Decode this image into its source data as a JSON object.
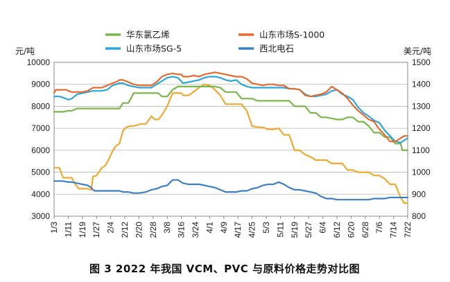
{
  "chart_data": {
    "type": "line",
    "caption": "图 3  2022 年我国 VCM、PVC 与原料价格走势对比图",
    "left_axis": {
      "unit": "元/吨",
      "ylim": [
        3000,
        10000
      ],
      "ticks": [
        "3000",
        "4000",
        "5000",
        "6000",
        "7000",
        "8000",
        "9000",
        "10000"
      ]
    },
    "right_axis": {
      "unit": "美元/吨",
      "ylim": [
        800,
        1500
      ],
      "ticks": [
        "800",
        "900",
        "1000",
        "1100",
        "1200",
        "1300",
        "1400",
        "1500"
      ]
    },
    "x_ticks": [
      "1/3",
      "1/11",
      "1/19",
      "1/27",
      "2/4",
      "2/12",
      "2/20",
      "2/28",
      "3/8",
      "3/16",
      "3/24",
      "4/1",
      "4/9",
      "4/17",
      "4/25",
      "5/3",
      "5/11",
      "5/19",
      "5/27",
      "6/4",
      "6/12",
      "6/20",
      "6/28",
      "7/6",
      "7/14",
      "7/22"
    ],
    "x_range_days": [
      3,
      203
    ],
    "grid": "horizontal",
    "legend_position": "top",
    "series": [
      {
        "name": "华东氯乙烯",
        "color": "#7ab648",
        "axis": "right",
        "x": [
          3,
          8,
          11,
          13,
          16,
          19,
          22,
          25,
          27,
          30,
          33,
          36,
          38,
          40,
          42,
          45,
          48,
          52,
          55,
          58,
          60,
          62,
          64,
          67,
          70,
          73,
          76,
          79,
          82,
          85,
          88,
          91,
          94,
          97,
          100,
          103,
          106,
          109,
          112,
          115,
          118,
          121,
          124,
          127,
          130,
          133,
          136,
          139,
          142,
          145,
          148,
          151,
          154,
          157,
          160,
          163,
          166,
          169,
          172,
          175,
          178,
          181,
          184,
          187,
          190,
          193,
          196,
          199,
          200,
          203
        ],
        "y": [
          1275,
          1275,
          1280,
          1280,
          1290,
          1290,
          1290,
          1290,
          1290,
          1290,
          1290,
          1290,
          1290,
          1290,
          1315,
          1315,
          1360,
          1360,
          1360,
          1360,
          1360,
          1360,
          1345,
          1345,
          1375,
          1390,
          1390,
          1390,
          1390,
          1390,
          1390,
          1390,
          1390,
          1385,
          1365,
          1365,
          1365,
          1335,
          1335,
          1335,
          1325,
          1325,
          1325,
          1325,
          1325,
          1325,
          1325,
          1300,
          1300,
          1300,
          1270,
          1270,
          1250,
          1250,
          1245,
          1240,
          1240,
          1250,
          1250,
          1230,
          1230,
          1210,
          1180,
          1180,
          1160,
          1160,
          1130,
          1130,
          1100,
          1100
        ]
      },
      {
        "name": "山东市场S-1000",
        "color": "#e56a2c",
        "axis": "left",
        "x": [
          3,
          4,
          6,
          8,
          10,
          11,
          13,
          16,
          19,
          22,
          25,
          27,
          30,
          33,
          36,
          38,
          40,
          42,
          45,
          48,
          51,
          55,
          58,
          61,
          64,
          67,
          70,
          73,
          75,
          76,
          79,
          82,
          85,
          88,
          91,
          94,
          97,
          100,
          103,
          106,
          109,
          112,
          115,
          118,
          121,
          124,
          127,
          130,
          133,
          136,
          139,
          142,
          145,
          148,
          151,
          154,
          157,
          160,
          163,
          166,
          169,
          172,
          175,
          178,
          181,
          184,
          187,
          190,
          193,
          196,
          199,
          201,
          203
        ],
        "y": [
          8600,
          8750,
          8750,
          8750,
          8750,
          8700,
          8650,
          8650,
          8650,
          8700,
          8850,
          8850,
          8850,
          8950,
          9050,
          9100,
          9200,
          9200,
          9100,
          9000,
          8950,
          8950,
          8950,
          9100,
          9350,
          9450,
          9500,
          9450,
          9450,
          9350,
          9350,
          9400,
          9350,
          9450,
          9500,
          9550,
          9500,
          9450,
          9400,
          9350,
          9350,
          9250,
          9050,
          9000,
          8950,
          9000,
          9000,
          8950,
          8950,
          8800,
          8800,
          8750,
          8500,
          8450,
          8500,
          8550,
          8650,
          8900,
          8750,
          8600,
          8350,
          8050,
          7800,
          7600,
          7400,
          7300,
          6950,
          6700,
          6400,
          6400,
          6550,
          6650,
          6650
        ]
      },
      {
        "name": "山东市场SG-5",
        "color": "#2aa6dc",
        "axis": "left",
        "x": [
          3,
          6,
          8,
          11,
          13,
          16,
          19,
          22,
          25,
          27,
          30,
          33,
          36,
          38,
          40,
          42,
          45,
          48,
          51,
          55,
          58,
          61,
          64,
          67,
          70,
          73,
          76,
          79,
          82,
          85,
          88,
          91,
          94,
          97,
          100,
          103,
          106,
          109,
          112,
          115,
          118,
          121,
          124,
          127,
          130,
          133,
          136,
          139,
          142,
          145,
          148,
          151,
          154,
          157,
          160,
          163,
          166,
          169,
          172,
          175,
          178,
          181,
          184,
          187,
          190,
          193,
          196,
          199,
          201,
          203
        ],
        "y": [
          8450,
          8450,
          8400,
          8300,
          8350,
          8550,
          8600,
          8650,
          8700,
          8700,
          8700,
          8750,
          8950,
          9000,
          9050,
          9050,
          8950,
          8900,
          8850,
          8850,
          8850,
          9000,
          9150,
          9300,
          9350,
          9300,
          9050,
          9100,
          9150,
          9200,
          9300,
          9350,
          9350,
          9300,
          9200,
          9150,
          9200,
          9000,
          8900,
          8850,
          8850,
          8850,
          8850,
          8850,
          8850,
          8850,
          8800,
          8800,
          8750,
          8550,
          8450,
          8450,
          8500,
          8550,
          8700,
          8750,
          8550,
          8450,
          8300,
          7950,
          7700,
          7550,
          7350,
          7250,
          6900,
          6650,
          6400,
          6350,
          6450,
          6550
        ]
      },
      {
        "name": "西北电石",
        "color": "#3b7fc4",
        "axis": "left",
        "x": [
          3,
          8,
          11,
          13,
          16,
          19,
          22,
          24,
          25,
          26,
          28,
          30,
          33,
          36,
          38,
          40,
          42,
          45,
          48,
          51,
          55,
          58,
          61,
          64,
          67,
          70,
          72,
          73,
          76,
          79,
          82,
          85,
          88,
          91,
          94,
          97,
          100,
          103,
          106,
          109,
          112,
          115,
          118,
          121,
          124,
          127,
          130,
          133,
          136,
          139,
          142,
          145,
          148,
          151,
          154,
          157,
          160,
          163,
          166,
          169,
          172,
          175,
          178,
          181,
          184,
          187,
          190,
          193,
          196,
          199,
          203
        ],
        "y": [
          4600,
          4600,
          4550,
          4550,
          4500,
          4450,
          4400,
          4300,
          4200,
          4150,
          4150,
          4150,
          4150,
          4150,
          4150,
          4150,
          4100,
          4100,
          4050,
          4050,
          4100,
          4200,
          4250,
          4350,
          4400,
          4650,
          4650,
          4650,
          4500,
          4450,
          4450,
          4450,
          4400,
          4350,
          4300,
          4200,
          4100,
          4100,
          4100,
          4150,
          4150,
          4250,
          4300,
          4400,
          4450,
          4450,
          4550,
          4450,
          4300,
          4200,
          4200,
          4150,
          4100,
          4050,
          3900,
          3800,
          3800,
          3750,
          3750,
          3750,
          3750,
          3750,
          3750,
          3750,
          3800,
          3800,
          3800,
          3850,
          3850,
          3850,
          3850
        ]
      },
      {
        "name": "",
        "color": "#f0a830",
        "axis": "right",
        "x": [
          3,
          6,
          8,
          11,
          13,
          15,
          17,
          19,
          22,
          24,
          25,
          27,
          30,
          32,
          34,
          36,
          38,
          40,
          42,
          44,
          46,
          48,
          52,
          55,
          58,
          60,
          62,
          64,
          67,
          69,
          70,
          72,
          75,
          76,
          79,
          81,
          85,
          88,
          91,
          94,
          97,
          100,
          103,
          106,
          109,
          112,
          115,
          118,
          121,
          124,
          127,
          130,
          133,
          136,
          139,
          142,
          145,
          148,
          151,
          154,
          157,
          160,
          163,
          166,
          169,
          172,
          175,
          178,
          181,
          184,
          187,
          190,
          193,
          196,
          199,
          201,
          203
        ],
        "y": [
          1020,
          1020,
          975,
          975,
          975,
          945,
          925,
          925,
          925,
          920,
          980,
          985,
          1020,
          1030,
          1060,
          1095,
          1120,
          1130,
          1190,
          1205,
          1210,
          1210,
          1220,
          1220,
          1255,
          1240,
          1240,
          1260,
          1300,
          1340,
          1360,
          1360,
          1360,
          1350,
          1350,
          1360,
          1385,
          1400,
          1395,
          1375,
          1350,
          1310,
          1310,
          1310,
          1310,
          1280,
          1210,
          1205,
          1205,
          1195,
          1195,
          1200,
          1170,
          1170,
          1100,
          1100,
          1080,
          1070,
          1055,
          1055,
          1055,
          1040,
          1040,
          1040,
          1010,
          1010,
          1000,
          1000,
          1000,
          985,
          985,
          970,
          945,
          945,
          885,
          860,
          860
        ]
      }
    ]
  }
}
